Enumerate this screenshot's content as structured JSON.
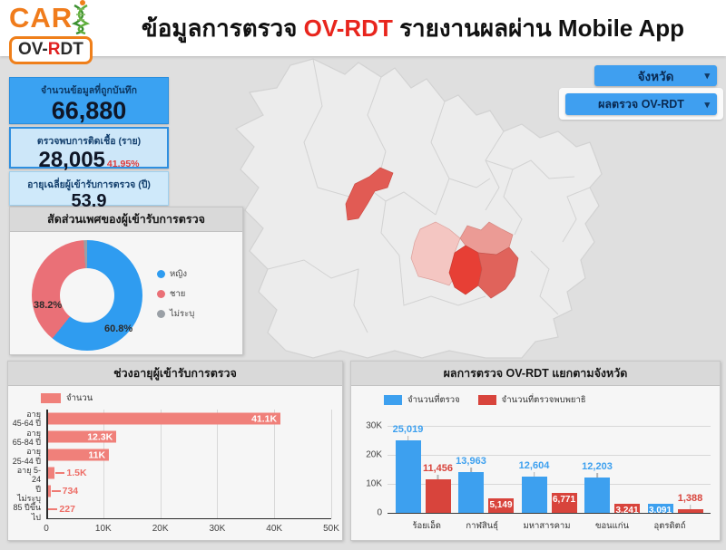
{
  "app": {
    "title_prefix": "ข้อมูลการตรวจ ",
    "title_highlight": "OV-RDT",
    "title_suffix": " รายงานผลผ่าน Mobile App"
  },
  "logo": {
    "brand": "CAR",
    "sub1": "OV-",
    "sub2": "R",
    "sub3": "DT"
  },
  "icons": {
    "chevron_down": "▾",
    "dna": "dna-helix"
  },
  "filters": {
    "province_label": "จังหวัด",
    "result_label": "ผลตรวจ OV-RDT"
  },
  "kpis": [
    {
      "label": "จำนวนข้อมูลที่ถูกบันทึก",
      "value": "66,880"
    },
    {
      "label": "ตรวจพบการติดเชื้อ (ราย)",
      "value": "28,005",
      "percent": "41.95%"
    },
    {
      "label": "อายุเฉลี่ยผู้เข้ารับการตรวจ (ปี)",
      "value": "53.9"
    }
  ],
  "map": {
    "base_color": "#ececec",
    "border_color": "#d2d2d2",
    "highlights": [
      {
        "name": "อุตรดิตถ์",
        "color": "#e15b54"
      },
      {
        "name": "ขอนแก่น",
        "color": "#f4c6c2"
      },
      {
        "name": "กาฬสินธุ์",
        "color": "#eb9b95"
      },
      {
        "name": "มหาสารคาม",
        "color": "#e73f35"
      },
      {
        "name": "ร้อยเอ็ด",
        "color": "#e0635b"
      }
    ]
  },
  "chart_data": [
    {
      "type": "pie",
      "title": "สัดส่วนเพศของผู้เข้ารับการตรวจ",
      "labels": [
        "หญิง",
        "ชาย",
        "ไม่ระบุ"
      ],
      "values": [
        60.8,
        38.2,
        1.0
      ],
      "display": [
        "60.8%",
        "38.2%",
        ""
      ],
      "colors": [
        "#2f9cf0",
        "#ea7077",
        "#9aa0a6"
      ],
      "donut": true,
      "legend_position": "right"
    },
    {
      "type": "bar",
      "orientation": "horizontal",
      "title": "ช่วงอายุผู้เข้ารับการตรวจ",
      "legend_name": "จำนวน",
      "bar_color": "#f0807a",
      "categories": [
        "อายุ\n45-64 ปี",
        "อายุ\n65-84 ปี",
        "อายุ\n25-44 ปี",
        "อายุ 5-24\nปี",
        "ไม่ระบุ",
        "85 ปีขึ้น\nไป"
      ],
      "values": [
        41100,
        12300,
        11000,
        1500,
        734,
        227
      ],
      "value_labels": [
        "41.1K",
        "12.3K",
        "11K",
        "1.5K",
        "734",
        "227"
      ],
      "label_inside": [
        true,
        true,
        true,
        false,
        false,
        false
      ],
      "xlim": [
        0,
        50000
      ],
      "x_ticks": [
        "0",
        "10K",
        "20K",
        "30K",
        "40K",
        "50K"
      ],
      "grid": true
    },
    {
      "type": "bar",
      "orientation": "vertical",
      "title": "ผลการตรวจ OV-RDT แยกตามจังหวัด",
      "categories": [
        "ร้อยเอ็ด",
        "กาฬสินธุ์",
        "มหาสารคาม",
        "ขอนแก่น",
        "อุตรดิตถ์"
      ],
      "series": [
        {
          "name": "จำนวนที่ตรวจ",
          "color": "#3da0ef",
          "values": [
            25019,
            13963,
            12604,
            12203,
            3091
          ],
          "value_labels": [
            "25,019",
            "13,963",
            "12,604",
            "12,203",
            "3,091"
          ],
          "label_inside": [
            false,
            false,
            false,
            false,
            true
          ]
        },
        {
          "name": "จำนวนที่ตรวจพบพยาธิ",
          "color": "#d8443c",
          "values": [
            11456,
            5149,
            6771,
            3241,
            1388
          ],
          "value_labels": [
            "11,456",
            "5,149",
            "6,771",
            "3,241",
            "1,388"
          ],
          "label_inside": [
            false,
            true,
            true,
            true,
            false
          ]
        }
      ],
      "ylim": [
        0,
        30000
      ],
      "y_ticks": [
        "30K",
        "20K",
        "10K",
        "0"
      ],
      "legend_position": "top",
      "grid": true
    }
  ]
}
